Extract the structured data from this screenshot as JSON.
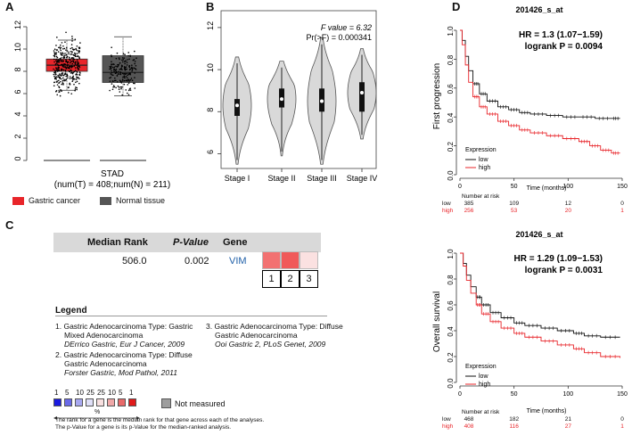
{
  "panel_labels": {
    "a": "A",
    "b": "B",
    "c": "C",
    "d": "D"
  },
  "colors": {
    "tumor": "#e8252a",
    "normal": "#555555",
    "low": "#111111",
    "high": "#e8252a",
    "violin": "#d9d9d9"
  },
  "chart_data": [
    {
      "id": "A",
      "type": "box",
      "title": "",
      "xlabel": "STAD",
      "xsublabel": "(num(T) = 408;num(N) = 211)",
      "ylim": [
        0,
        12
      ],
      "yticks": [
        0,
        2,
        4,
        6,
        8,
        10,
        12
      ],
      "boxes": [
        {
          "name": "Gastric cancer",
          "n": 408,
          "q1": 8.0,
          "median": 8.55,
          "q3": 9.1,
          "whisker_low": 6.3,
          "whisker_high": 10.8,
          "color": "#e8252a",
          "points_low": 5.6,
          "points_high": 11.9
        },
        {
          "name": "Normal tissue",
          "n": 211,
          "q1": 7.0,
          "median": 7.9,
          "q3": 9.4,
          "whisker_low": 5.8,
          "whisker_high": 11.1,
          "color": "#555555",
          "points_low": 5.5,
          "points_high": 11.1
        }
      ],
      "legend": [
        "Gastric cancer",
        "Normal tissue"
      ]
    },
    {
      "id": "B",
      "type": "violin",
      "categories": [
        "Stage I",
        "Stage II",
        "Stage III",
        "Stage IV"
      ],
      "ylim": [
        5.3,
        12.8
      ],
      "yticks": [
        6,
        8,
        10,
        12
      ],
      "violins": [
        {
          "name": "Stage I",
          "min": 5.5,
          "max": 10.6,
          "q1": 7.8,
          "median": 8.3,
          "q3": 8.6
        },
        {
          "name": "Stage II",
          "min": 5.9,
          "max": 10.4,
          "q1": 8.2,
          "median": 8.6,
          "q3": 9.1
        },
        {
          "name": "Stage III",
          "min": 5.5,
          "max": 11.5,
          "q1": 8.0,
          "median": 8.5,
          "q3": 9.1
        },
        {
          "name": "Stage IV",
          "min": 6.7,
          "max": 11.0,
          "q1": 8.0,
          "median": 8.9,
          "q3": 9.4
        }
      ],
      "stat_f_label": "F value = 6.32",
      "stat_p_label": "Pr(>F) = 0.000341"
    },
    {
      "id": "D1",
      "type": "line",
      "title": "201426_s_at",
      "ylabel": "First progression",
      "xlabel": "Time (months)",
      "xlim": [
        0,
        150
      ],
      "ylim": [
        0,
        1
      ],
      "xticks": [
        0,
        50,
        100,
        150
      ],
      "yticks": [
        0.0,
        0.2,
        0.4,
        0.6,
        0.8,
        1.0
      ],
      "hr_text": "HR = 1.3 (1.07−1.59)",
      "logrank_text": "logrank P = 0.0094",
      "legend_title": "Expression",
      "series": [
        {
          "name": "low",
          "x": [
            0,
            2,
            5,
            8,
            12,
            18,
            25,
            35,
            45,
            55,
            65,
            80,
            95,
            110,
            125,
            140,
            148
          ],
          "y": [
            1.0,
            0.93,
            0.82,
            0.72,
            0.63,
            0.56,
            0.51,
            0.47,
            0.45,
            0.43,
            0.42,
            0.41,
            0.4,
            0.4,
            0.39,
            0.39,
            0.39
          ]
        },
        {
          "name": "high",
          "x": [
            0,
            2,
            5,
            8,
            12,
            18,
            25,
            35,
            45,
            55,
            65,
            80,
            95,
            110,
            120,
            130,
            140,
            148
          ],
          "y": [
            1.0,
            0.9,
            0.76,
            0.64,
            0.54,
            0.47,
            0.42,
            0.37,
            0.34,
            0.31,
            0.29,
            0.27,
            0.25,
            0.23,
            0.2,
            0.17,
            0.15,
            0.15
          ]
        }
      ],
      "risk_header": "Number at risk",
      "risk_times": [
        0,
        50,
        100,
        150
      ],
      "risk": {
        "low": [
          "385",
          "109",
          "12",
          "0"
        ],
        "high": [
          "256",
          "53",
          "20",
          "1"
        ]
      }
    },
    {
      "id": "D2",
      "type": "line",
      "title": "201426_s_at",
      "ylabel": "Overall survival",
      "xlabel": "Time (months)",
      "xlim": [
        0,
        150
      ],
      "ylim": [
        0,
        1
      ],
      "xticks": [
        0,
        50,
        100,
        150
      ],
      "yticks": [
        0.0,
        0.2,
        0.4,
        0.6,
        0.8,
        1.0
      ],
      "hr_text": "HR = 1.29 (1.09−1.53)",
      "logrank_text": "logrank P = 0.0031",
      "legend_title": "Expression",
      "series": [
        {
          "name": "low",
          "x": [
            0,
            3,
            6,
            10,
            15,
            20,
            28,
            38,
            50,
            60,
            75,
            90,
            105,
            115,
            130,
            148
          ],
          "y": [
            1.0,
            0.92,
            0.83,
            0.74,
            0.66,
            0.6,
            0.54,
            0.5,
            0.46,
            0.44,
            0.42,
            0.4,
            0.38,
            0.36,
            0.35,
            0.35
          ]
        },
        {
          "name": "high",
          "x": [
            0,
            3,
            6,
            10,
            15,
            20,
            28,
            38,
            50,
            60,
            75,
            90,
            105,
            115,
            130,
            148
          ],
          "y": [
            1.0,
            0.9,
            0.79,
            0.69,
            0.6,
            0.53,
            0.47,
            0.42,
            0.38,
            0.35,
            0.32,
            0.29,
            0.26,
            0.23,
            0.2,
            0.19
          ]
        }
      ],
      "risk_header": "Number at risk",
      "risk_times": [
        0,
        50,
        100,
        150
      ],
      "risk": {
        "low": [
          "468",
          "182",
          "21",
          "0"
        ],
        "high": [
          "408",
          "116",
          "27",
          "1"
        ]
      }
    }
  ],
  "panelC": {
    "headers": {
      "rank": "Median Rank",
      "pvalue": "P-Value",
      "gene": "Gene"
    },
    "row": {
      "rank": "506.0",
      "pvalue": "0.002",
      "gene": "VIM"
    },
    "analysis_numbers": [
      "1",
      "2",
      "3"
    ],
    "analysis_colors": [
      "#f27171",
      "#f05a5a",
      "#fbe1e1"
    ],
    "legend_title": "Legend",
    "refs": [
      {
        "num": "1.",
        "l1": "Gastric Adenocarcinoma Type: Gastric",
        "l2": "Mixed Adenocarcinoma",
        "cite": "DErrico Gastric, Eur J Cancer, 2009"
      },
      {
        "num": "2.",
        "l1": "Gastric Adenocarcinoma Type: Diffuse",
        "l2": "Gastric Adenocarcinoma",
        "cite": "Forster Gastric, Mod Pathol, 2011"
      },
      {
        "num": "3.",
        "l1": "Gastric Adenocarcinoma Type: Diffuse",
        "l2": "Gastric Adenocarcinoma",
        "cite": "Ooi Gastric 2, PLoS Genet, 2009"
      }
    ],
    "scale_labels": [
      "1",
      "5",
      "10",
      "25",
      "25",
      "10",
      "5",
      "1"
    ],
    "scale_colors": [
      "#1a1ae0",
      "#6a6ae8",
      "#a8a8f0",
      "#e0e0f8",
      "#f8e0e0",
      "#f0a8a8",
      "#e86a6a",
      "#e01a1a"
    ],
    "scale_pct": "%",
    "not_measured": "Not measured",
    "footnote1": "The rank for a gene is the median rank for that gene across each of the analyses.",
    "footnote2": "The p-Value for a gene is its p-Value for the median-ranked analysis."
  }
}
